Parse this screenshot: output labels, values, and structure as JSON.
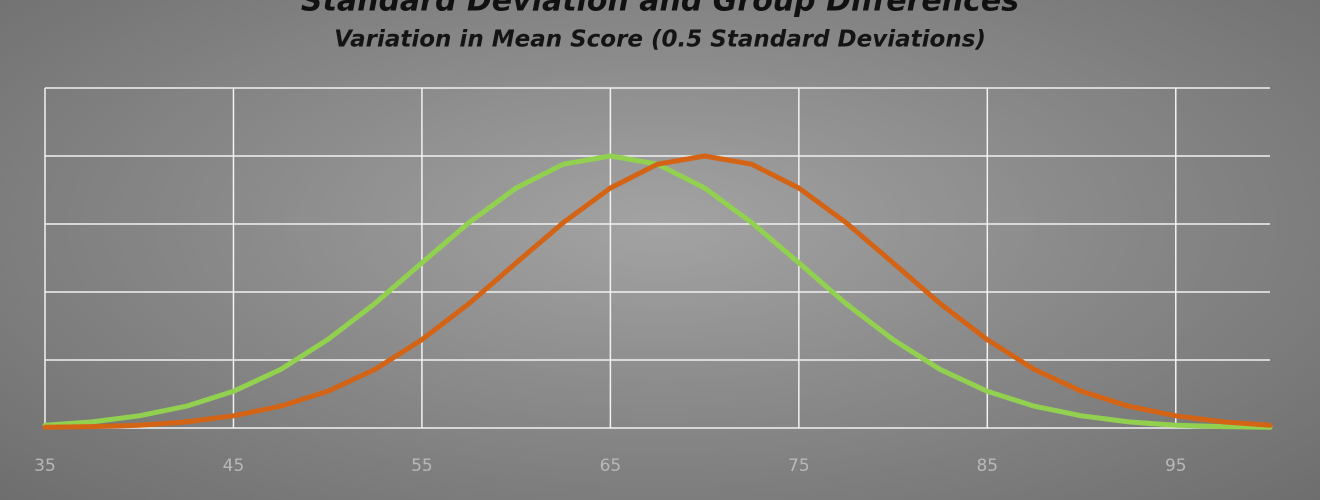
{
  "chart_data": {
    "type": "line",
    "title": "Standard Deviation and Group Differences",
    "subtitle": "Variation in Mean Score (0.5 Standard Deviations)",
    "x": [
      35,
      37.5,
      40,
      42.5,
      45,
      47.5,
      50,
      52.5,
      55,
      57.5,
      60,
      62.5,
      65,
      67.5,
      70,
      72.5,
      75,
      77.5,
      80,
      82.5,
      85,
      87.5,
      90,
      92.5,
      95,
      97.5,
      100
    ],
    "series": [
      {
        "color": "#92d050",
        "values": [
          0.04,
          0.09,
          0.18,
          0.32,
          0.54,
          0.86,
          1.3,
          1.83,
          2.43,
          3.02,
          3.53,
          3.88,
          4,
          3.88,
          3.53,
          3.02,
          2.43,
          1.83,
          1.3,
          0.86,
          0.54,
          0.32,
          0.18,
          0.09,
          0.04,
          0.02,
          0.01
        ]
      },
      {
        "color": "#d46415",
        "values": [
          0.01,
          0.02,
          0.04,
          0.09,
          0.18,
          0.32,
          0.54,
          0.86,
          1.3,
          1.83,
          2.43,
          3.02,
          3.53,
          3.88,
          4,
          3.88,
          3.53,
          3.02,
          2.43,
          1.83,
          1.3,
          0.86,
          0.54,
          0.32,
          0.18,
          0.09,
          0.04
        ]
      }
    ],
    "xlim": [
      35,
      100
    ],
    "xticks": [
      35,
      45,
      55,
      65,
      75,
      85,
      95
    ],
    "ylim": [
      0,
      5
    ],
    "yticks": [
      0,
      1,
      2,
      3,
      4,
      5
    ],
    "grid": true
  }
}
